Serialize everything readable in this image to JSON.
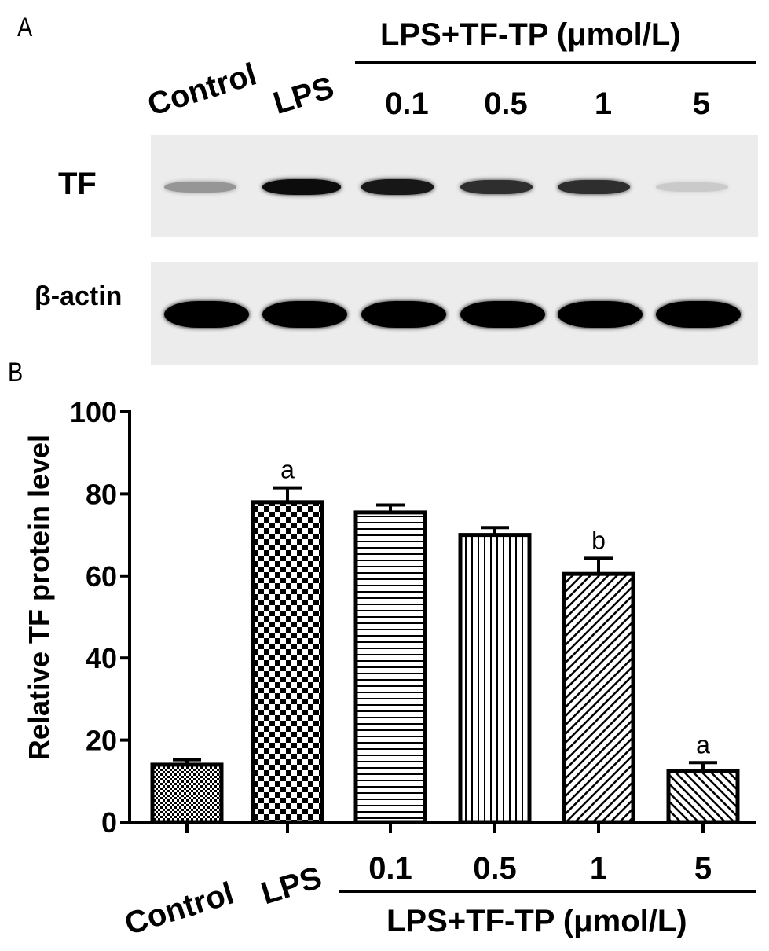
{
  "panel_a": {
    "letter": "A",
    "group_label": "LPS+TF-TP (μmol/L)",
    "lanes": [
      "Control",
      "LPS",
      "0.1",
      "0.5",
      "1",
      "5"
    ],
    "rows": [
      {
        "label": "TF",
        "intensity": [
          0.35,
          0.95,
          0.9,
          0.8,
          0.8,
          0.12
        ]
      },
      {
        "label": "β-actin",
        "intensity": [
          1,
          1,
          1,
          1,
          1,
          1
        ]
      }
    ]
  },
  "panel_b": {
    "letter": "B",
    "group_label": "LPS+TF-TP (μmol/L)"
  },
  "chart_data": {
    "type": "bar",
    "categories": [
      "Control",
      "LPS",
      "0.1",
      "0.5",
      "1",
      "5"
    ],
    "values": [
      14,
      78,
      75.5,
      70,
      60.5,
      12.5
    ],
    "errors": [
      1.2,
      3.5,
      1.8,
      1.8,
      3.8,
      2.0
    ],
    "annotations": [
      "",
      "a",
      "",
      "",
      "b",
      "a"
    ],
    "patterns": [
      "fine-check",
      "checker",
      "horizontal-lines",
      "vertical-lines",
      "diagonal-right",
      "diagonal-left"
    ],
    "ylabel": "Relative TF protein level",
    "xlabel": "",
    "ylim": [
      0,
      100
    ],
    "yticks": [
      0,
      20,
      40,
      60,
      80,
      100
    ]
  }
}
